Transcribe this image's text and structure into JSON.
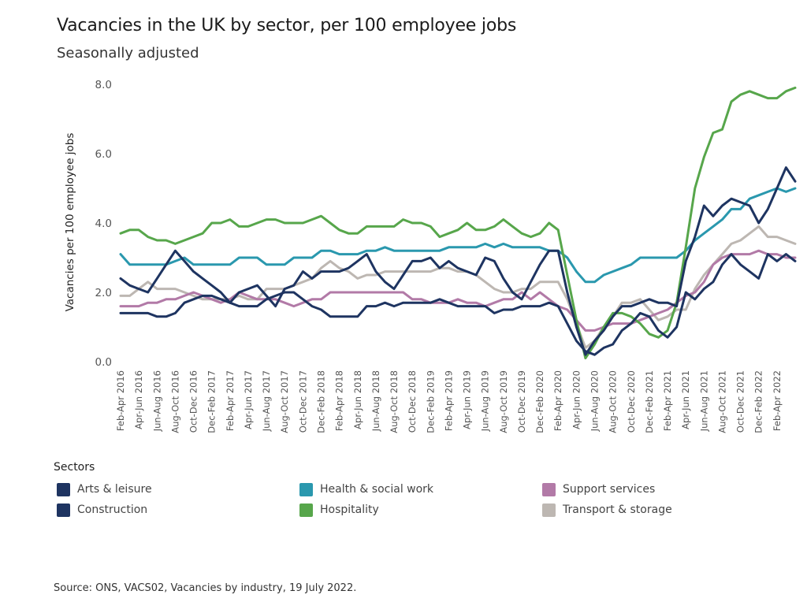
{
  "title": "Vacancies in the UK by sector, per 100 employee jobs",
  "subtitle": "Seasonally adjusted",
  "source": "Source: ONS, VACS02, Vacancies by industry, 19 July 2022.",
  "legend": {
    "title": "Sectors"
  },
  "chart_data": {
    "type": "line",
    "title": "Vacancies in the UK by sector, per 100 employee jobs",
    "subtitle": "Seasonally adjusted",
    "xlabel": "",
    "ylabel": "Vacancies per 100 employee jobs",
    "ylim": [
      0,
      8
    ],
    "yticks": [
      "0.0",
      "2.0",
      "4.0",
      "6.0",
      "8.0"
    ],
    "grid": false,
    "legend_position": "bottom",
    "x_tick_labels": [
      "Feb-Apr 2016",
      "Apr-Jun 2016",
      "Jun-Aug 2016",
      "Aug-Oct 2016",
      "Oct-Dec 2016",
      "Dec-Feb 2017",
      "Feb-Apr 2017",
      "Apr-Jun 2017",
      "Jun-Aug 2017",
      "Aug-Oct 2017",
      "Oct-Dec 2017",
      "Dec-Feb 2018",
      "Feb-Apr 2018",
      "Apr-Jun 2018",
      "Jun-Aug 2018",
      "Aug-Oct 2018",
      "Oct-Dec 2018",
      "Dec-Feb 2019",
      "Feb-Apr 2019",
      "Apr-Jun 2019",
      "Jun-Aug 2019",
      "Aug-Oct 2019",
      "Oct-Dec 2019",
      "Dec-Feb 2020",
      "Feb-Apr 2020",
      "Apr-Jun 2020",
      "Jun-Aug 2020",
      "Aug-Oct 2020",
      "Oct-Dec 2020",
      "Dec-Feb 2021",
      "Feb-Apr 2021",
      "Apr-Jun 2021",
      "Jun-Aug 2021",
      "Aug-Oct 2021",
      "Oct-Dec 2021",
      "Dec-Feb 2022",
      "Feb-Apr 2022"
    ],
    "categories": [
      "Feb-Apr 2016",
      "Mar-May 2016",
      "Apr-Jun 2016",
      "May-Jul 2016",
      "Jun-Aug 2016",
      "Jul-Sep 2016",
      "Aug-Oct 2016",
      "Sep-Nov 2016",
      "Oct-Dec 2016",
      "Nov-Jan 2017",
      "Dec-Feb 2017",
      "Jan-Mar 2017",
      "Feb-Apr 2017",
      "Mar-May 2017",
      "Apr-Jun 2017",
      "May-Jul 2017",
      "Jun-Aug 2017",
      "Jul-Sep 2017",
      "Aug-Oct 2017",
      "Sep-Nov 2017",
      "Oct-Dec 2017",
      "Nov-Jan 2018",
      "Dec-Feb 2018",
      "Jan-Mar 2018",
      "Feb-Apr 2018",
      "Mar-May 2018",
      "Apr-Jun 2018",
      "May-Jul 2018",
      "Jun-Aug 2018",
      "Jul-Sep 2018",
      "Aug-Oct 2018",
      "Sep-Nov 2018",
      "Oct-Dec 2018",
      "Nov-Jan 2019",
      "Dec-Feb 2019",
      "Jan-Mar 2019",
      "Feb-Apr 2019",
      "Mar-May 2019",
      "Apr-Jun 2019",
      "May-Jul 2019",
      "Jun-Aug 2019",
      "Jul-Sep 2019",
      "Aug-Oct 2019",
      "Sep-Nov 2019",
      "Oct-Dec 2019",
      "Nov-Jan 2020",
      "Dec-Feb 2020",
      "Jan-Mar 2020",
      "Feb-Apr 2020",
      "Mar-May 2020",
      "Apr-Jun 2020",
      "May-Jul 2020",
      "Jun-Aug 2020",
      "Jul-Sep 2020",
      "Aug-Oct 2020",
      "Sep-Nov 2020",
      "Oct-Dec 2020",
      "Nov-Jan 2021",
      "Dec-Feb 2021",
      "Jan-Mar 2021",
      "Feb-Apr 2021",
      "Mar-May 2021",
      "Apr-Jun 2021",
      "May-Jul 2021",
      "Jun-Aug 2021",
      "Jul-Sep 2021",
      "Aug-Oct 2021",
      "Sep-Nov 2021",
      "Oct-Dec 2021",
      "Nov-Jan 2022",
      "Dec-Feb 2022",
      "Jan-Mar 2022",
      "Feb-Apr 2022",
      "Mar-May 2022",
      "Apr-Jun 2022"
    ],
    "series": [
      {
        "name": "Arts & leisure",
        "color": "#1e3461",
        "values": [
          2.4,
          2.2,
          2.1,
          2.0,
          2.4,
          2.8,
          3.2,
          2.9,
          2.6,
          2.4,
          2.2,
          2.0,
          1.7,
          2.0,
          2.1,
          2.2,
          1.9,
          1.6,
          2.1,
          2.2,
          2.6,
          2.4,
          2.6,
          2.6,
          2.6,
          2.7,
          2.9,
          3.1,
          2.6,
          2.3,
          2.1,
          2.5,
          2.9,
          2.9,
          3.0,
          2.7,
          2.9,
          2.7,
          2.6,
          2.5,
          3.0,
          2.9,
          2.4,
          2.0,
          1.8,
          2.3,
          2.8,
          3.2,
          3.2,
          2.0,
          1.0,
          0.2,
          0.6,
          0.9,
          1.3,
          1.6,
          1.6,
          1.7,
          1.8,
          1.7,
          1.7,
          1.6,
          2.9,
          3.6,
          4.5,
          4.2,
          4.5,
          4.7,
          4.6,
          4.5,
          4.0,
          4.4,
          5.0,
          5.6,
          5.2
        ]
      },
      {
        "name": "Construction",
        "color": "#1e3461",
        "values": [
          1.4,
          1.4,
          1.4,
          1.4,
          1.3,
          1.3,
          1.4,
          1.7,
          1.8,
          1.9,
          1.9,
          1.8,
          1.7,
          1.6,
          1.6,
          1.6,
          1.8,
          1.9,
          2.0,
          2.0,
          1.8,
          1.6,
          1.5,
          1.3,
          1.3,
          1.3,
          1.3,
          1.6,
          1.6,
          1.7,
          1.6,
          1.7,
          1.7,
          1.7,
          1.7,
          1.8,
          1.7,
          1.6,
          1.6,
          1.6,
          1.6,
          1.4,
          1.5,
          1.5,
          1.6,
          1.6,
          1.6,
          1.7,
          1.6,
          1.1,
          0.6,
          0.3,
          0.2,
          0.4,
          0.5,
          0.9,
          1.1,
          1.4,
          1.3,
          0.9,
          0.7,
          1.0,
          2.0,
          1.8,
          2.1,
          2.3,
          2.8,
          3.1,
          2.8,
          2.6,
          2.4,
          3.1,
          2.9,
          3.1,
          2.9
        ]
      },
      {
        "name": "Health & social work",
        "color": "#2a98ae",
        "values": [
          3.1,
          2.8,
          2.8,
          2.8,
          2.8,
          2.8,
          2.9,
          3.0,
          2.8,
          2.8,
          2.8,
          2.8,
          2.8,
          3.0,
          3.0,
          3.0,
          2.8,
          2.8,
          2.8,
          3.0,
          3.0,
          3.0,
          3.2,
          3.2,
          3.1,
          3.1,
          3.1,
          3.2,
          3.2,
          3.3,
          3.2,
          3.2,
          3.2,
          3.2,
          3.2,
          3.2,
          3.3,
          3.3,
          3.3,
          3.3,
          3.4,
          3.3,
          3.4,
          3.3,
          3.3,
          3.3,
          3.3,
          3.2,
          3.2,
          3.0,
          2.6,
          2.3,
          2.3,
          2.5,
          2.6,
          2.7,
          2.8,
          3.0,
          3.0,
          3.0,
          3.0,
          3.0,
          3.2,
          3.5,
          3.7,
          3.9,
          4.1,
          4.4,
          4.4,
          4.7,
          4.8,
          4.9,
          5.0,
          4.9,
          5.0
        ]
      },
      {
        "name": "Hospitality",
        "color": "#57a64b",
        "values": [
          3.7,
          3.8,
          3.8,
          3.6,
          3.5,
          3.5,
          3.4,
          3.5,
          3.6,
          3.7,
          4.0,
          4.0,
          4.1,
          3.9,
          3.9,
          4.0,
          4.1,
          4.1,
          4.0,
          4.0,
          4.0,
          4.1,
          4.2,
          4.0,
          3.8,
          3.7,
          3.7,
          3.9,
          3.9,
          3.9,
          3.9,
          4.1,
          4.0,
          4.0,
          3.9,
          3.6,
          3.7,
          3.8,
          4.0,
          3.8,
          3.8,
          3.9,
          4.1,
          3.9,
          3.7,
          3.6,
          3.7,
          4.0,
          3.8,
          2.5,
          1.2,
          0.1,
          0.5,
          1.0,
          1.4,
          1.4,
          1.3,
          1.1,
          0.8,
          0.7,
          0.9,
          1.7,
          3.3,
          5.0,
          5.9,
          6.6,
          6.7,
          7.5,
          7.7,
          7.8,
          7.7,
          7.6,
          7.6,
          7.8,
          7.9
        ]
      },
      {
        "name": "Support services",
        "color": "#b27aa7",
        "values": [
          1.6,
          1.6,
          1.6,
          1.7,
          1.7,
          1.8,
          1.8,
          1.9,
          2.0,
          1.9,
          1.8,
          1.7,
          1.8,
          2.0,
          1.9,
          1.8,
          1.8,
          1.8,
          1.7,
          1.6,
          1.7,
          1.8,
          1.8,
          2.0,
          2.0,
          2.0,
          2.0,
          2.0,
          2.0,
          2.0,
          2.0,
          2.0,
          1.8,
          1.8,
          1.7,
          1.7,
          1.7,
          1.8,
          1.7,
          1.7,
          1.6,
          1.7,
          1.8,
          1.8,
          2.0,
          1.8,
          2.0,
          1.8,
          1.6,
          1.5,
          1.2,
          0.9,
          0.9,
          1.0,
          1.1,
          1.1,
          1.1,
          1.2,
          1.3,
          1.4,
          1.5,
          1.7,
          1.9,
          2.0,
          2.3,
          2.8,
          3.0,
          3.1,
          3.1,
          3.1,
          3.2,
          3.1,
          3.1,
          3.0,
          3.0
        ]
      },
      {
        "name": "Transport & storage",
        "color": "#bdb7b2",
        "values": [
          1.9,
          1.9,
          2.1,
          2.3,
          2.1,
          2.1,
          2.1,
          2.0,
          1.9,
          1.8,
          1.8,
          1.8,
          1.8,
          1.9,
          1.8,
          1.8,
          2.1,
          2.1,
          2.1,
          2.2,
          2.3,
          2.4,
          2.7,
          2.9,
          2.7,
          2.6,
          2.4,
          2.5,
          2.5,
          2.6,
          2.6,
          2.6,
          2.6,
          2.6,
          2.6,
          2.7,
          2.7,
          2.6,
          2.6,
          2.5,
          2.3,
          2.1,
          2.0,
          2.0,
          2.1,
          2.1,
          2.3,
          2.3,
          2.3,
          1.8,
          1.1,
          0.4,
          0.6,
          1.0,
          1.3,
          1.7,
          1.7,
          1.8,
          1.5,
          1.2,
          1.3,
          1.5,
          1.5,
          2.1,
          2.5,
          2.8,
          3.1,
          3.4,
          3.5,
          3.7,
          3.9,
          3.6,
          3.6,
          3.5,
          3.4
        ]
      }
    ]
  }
}
